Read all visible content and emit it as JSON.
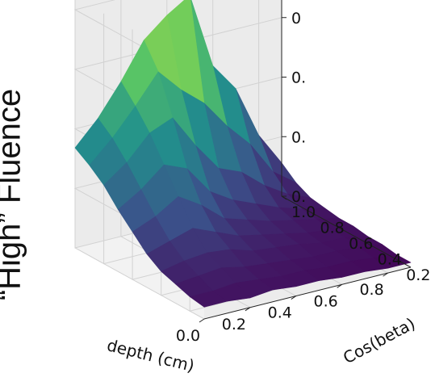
{
  "side_label": "“High” Fluence",
  "colors": {
    "surface_low": "#440154",
    "surface_high": "#fde725",
    "pane": "#f2f2f2",
    "grid": "#d2d2d2"
  },
  "chart_data": {
    "type": "surface",
    "colormap": "viridis",
    "xlabel": "depth (cm)",
    "ylabel": "Cos(beta)",
    "zlabel": "",
    "x_ticks": [
      "0.0",
      "0.2",
      "0.4",
      "0.6",
      "0.8"
    ],
    "y_ticks": [
      "0.2",
      "0.4",
      "0.6",
      "0.8",
      "1.0"
    ],
    "z_ticks_visible": [
      "0.",
      "0.",
      "0.",
      "0"
    ],
    "xlim": [
      0.0,
      0.9
    ],
    "ylim": [
      0.1,
      1.0
    ],
    "grid": true,
    "x": [
      0.0,
      0.1,
      0.2,
      0.3,
      0.4,
      0.5,
      0.6,
      0.7,
      0.8,
      0.9
    ],
    "y": [
      0.1,
      0.2,
      0.3,
      0.4,
      0.5,
      0.6,
      0.7,
      0.8,
      0.9,
      1.0
    ],
    "z": [
      [
        0.05,
        0.06,
        0.08,
        0.1,
        0.14,
        0.2,
        0.26,
        0.33,
        0.38,
        0.42
      ],
      [
        0.05,
        0.06,
        0.09,
        0.12,
        0.17,
        0.24,
        0.32,
        0.4,
        0.47,
        0.52
      ],
      [
        0.04,
        0.07,
        0.1,
        0.13,
        0.2,
        0.3,
        0.4,
        0.5,
        0.58,
        0.65
      ],
      [
        0.05,
        0.06,
        0.08,
        0.12,
        0.16,
        0.24,
        0.36,
        0.54,
        0.7,
        0.8
      ],
      [
        0.04,
        0.05,
        0.07,
        0.09,
        0.12,
        0.16,
        0.24,
        0.4,
        0.6,
        0.88
      ],
      [
        0.04,
        0.05,
        0.06,
        0.08,
        0.1,
        0.13,
        0.18,
        0.28,
        0.52,
        0.94
      ],
      [
        0.03,
        0.04,
        0.05,
        0.07,
        0.08,
        0.1,
        0.14,
        0.24,
        0.4,
        0.62
      ],
      [
        0.03,
        0.04,
        0.05,
        0.05,
        0.06,
        0.08,
        0.1,
        0.16,
        0.3,
        0.5
      ],
      [
        0.02,
        0.03,
        0.04,
        0.05,
        0.05,
        0.06,
        0.07,
        0.1,
        0.16,
        0.28
      ],
      [
        0.02,
        0.02,
        0.03,
        0.03,
        0.04,
        0.04,
        0.05,
        0.06,
        0.09,
        0.14
      ]
    ]
  }
}
